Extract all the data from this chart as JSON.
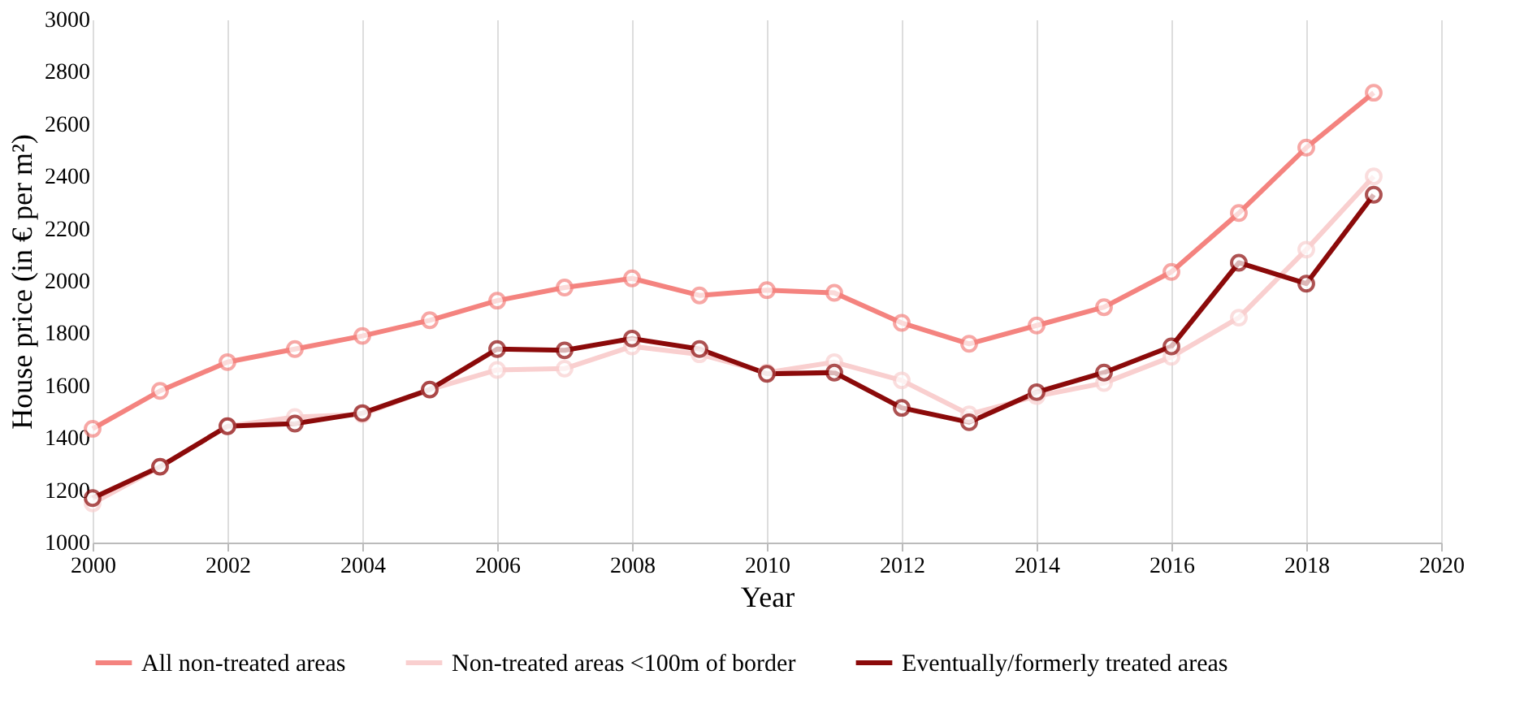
{
  "chart_data": {
    "type": "line",
    "xlabel": "Year",
    "ylabel": "House price (in € per m²)",
    "x": [
      2000,
      2001,
      2002,
      2003,
      2004,
      2005,
      2006,
      2007,
      2008,
      2009,
      2010,
      2011,
      2012,
      2013,
      2014,
      2015,
      2016,
      2017,
      2018,
      2019
    ],
    "series": [
      {
        "name": "All non-treated areas",
        "color": "#f4837f",
        "values": [
          1435,
          1580,
          1690,
          1740,
          1790,
          1850,
          1925,
          1975,
          2010,
          1945,
          1965,
          1955,
          1840,
          1760,
          1830,
          1900,
          2035,
          2260,
          2510,
          2720
        ]
      },
      {
        "name": "Non-treated areas <100m of border",
        "color": "#f9cfcf",
        "values": [
          1150,
          1290,
          1445,
          1480,
          1490,
          1585,
          1660,
          1665,
          1750,
          1720,
          1650,
          1690,
          1620,
          1490,
          1560,
          1610,
          1710,
          1860,
          2120,
          2400
        ]
      },
      {
        "name": "Eventually/formerly treated areas",
        "color": "#8b0a0a",
        "values": [
          1170,
          1290,
          1445,
          1455,
          1495,
          1585,
          1740,
          1735,
          1780,
          1740,
          1645,
          1650,
          1515,
          1460,
          1575,
          1650,
          1750,
          2070,
          1990,
          2330
        ]
      }
    ],
    "xlim": [
      2000,
      2020
    ],
    "xticks": [
      2000,
      2002,
      2004,
      2006,
      2008,
      2010,
      2012,
      2014,
      2016,
      2018,
      2020
    ],
    "ylim": [
      1000,
      3000
    ],
    "yticks": [
      1000,
      1200,
      1400,
      1600,
      1800,
      2000,
      2200,
      2400,
      2600,
      2800,
      3000
    ],
    "grid": "x",
    "legend": "bottom",
    "marker": "circle",
    "line_style": "solid"
  }
}
